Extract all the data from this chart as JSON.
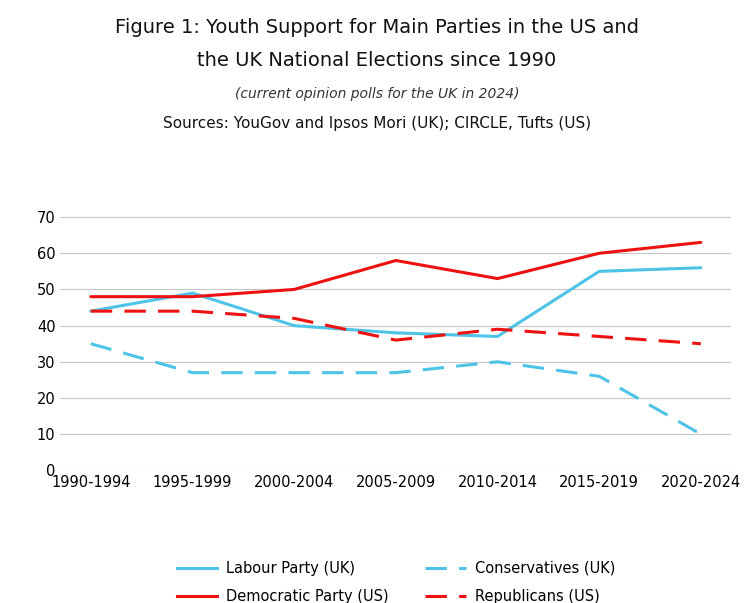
{
  "title_line1": "Figure 1: Youth Support for Main Parties in the US and",
  "title_line2": "the UK National Elections since 1990",
  "subtitle1": "(current opinion polls for the UK in 2024)",
  "subtitle2": "Sources: YouGov and Ipsos Mori (UK); CIRCLE, Tufts (US)",
  "x_labels": [
    "1990-1994",
    "1995-1999",
    "2000-2004",
    "2005-2009",
    "2010-2014",
    "2015-2019",
    "2020-2024"
  ],
  "x_values": [
    0,
    1,
    2,
    3,
    4,
    5,
    6
  ],
  "labour": [
    44,
    49,
    40,
    38,
    37,
    55,
    56
  ],
  "democratic": [
    48,
    48,
    50,
    58,
    53,
    60,
    63
  ],
  "conservatives": [
    35,
    27,
    27,
    27,
    30,
    26,
    10
  ],
  "republicans": [
    44,
    44,
    42,
    36,
    39,
    37,
    35
  ],
  "labour_color": "#4DC3E8",
  "democratic_color": "#EE1111",
  "conservatives_color": "#4DC3E8",
  "republicans_color": "#EE1111",
  "ylim": [
    0,
    75
  ],
  "yticks": [
    0,
    10,
    20,
    30,
    40,
    50,
    60,
    70
  ],
  "linewidth": 2.2,
  "bg_color": "#FFFFFF",
  "grid_color": "#C8C8C8",
  "title_fontsize": 14,
  "subtitle1_fontsize": 10,
  "subtitle2_fontsize": 11,
  "tick_fontsize": 10.5,
  "legend_fontsize": 10.5
}
